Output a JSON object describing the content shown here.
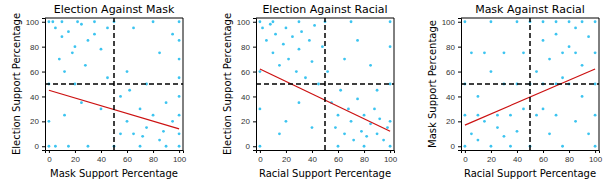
{
  "chart_data": [
    {
      "type": "scatter",
      "title": "Election Against Mask",
      "x_label": "Mask Support Percentage",
      "y_label": "Election Support Percentage",
      "xlim": [
        -3,
        103
      ],
      "ylim": [
        -3,
        103
      ],
      "xticks": [
        0,
        20,
        40,
        60,
        80,
        100
      ],
      "yticks": [
        0,
        20,
        40,
        60,
        80,
        100
      ],
      "grid": false,
      "series": [
        {
          "type": "scatter",
          "marker": "circle",
          "color": "#3cc4f0",
          "x": [
            5,
            10,
            15,
            20,
            8,
            25,
            30,
            12,
            18,
            35,
            40,
            22,
            45,
            3,
            28,
            0,
            0,
            0,
            0,
            5,
            15,
            30,
            50,
            70,
            90,
            100,
            100,
            100,
            100,
            100,
            100,
            100,
            100,
            60,
            65,
            70,
            75,
            80,
            85,
            90,
            55,
            60,
            75,
            85,
            95,
            65,
            80,
            50,
            35,
            10,
            20,
            40,
            55,
            45,
            95,
            88,
            72,
            62,
            25,
            12
          ],
          "values": [
            95,
            88,
            92,
            80,
            70,
            98,
            85,
            60,
            75,
            90,
            78,
            100,
            95,
            100,
            65,
            100,
            50,
            20,
            0,
            0,
            0,
            0,
            0,
            0,
            0,
            0,
            10,
            25,
            40,
            55,
            70,
            85,
            100,
            20,
            10,
            30,
            15,
            25,
            5,
            35,
            40,
            60,
            50,
            75,
            90,
            95,
            100,
            100,
            100,
            100,
            50,
            30,
            10,
            55,
            20,
            12,
            8,
            45,
            35,
            25
          ]
        },
        {
          "type": "line",
          "line_style": "solid",
          "color": "#cc1111",
          "x": [
            0,
            100
          ],
          "values": [
            45,
            14
          ]
        },
        {
          "type": "line",
          "line_style": "dashed",
          "color": "#000000",
          "x": [
            50,
            50
          ],
          "values": [
            -3,
            103
          ]
        },
        {
          "type": "line",
          "line_style": "dashed",
          "color": "#000000",
          "x": [
            -3,
            103
          ],
          "values": [
            50,
            50
          ]
        }
      ]
    },
    {
      "type": "scatter",
      "title": "Election Against Racial",
      "x_label": "Racial Support Percentage",
      "y_label": "Election Support Percentage",
      "xlim": [
        -3,
        103
      ],
      "ylim": [
        -3,
        103
      ],
      "xticks": [
        0,
        20,
        40,
        60,
        80,
        100
      ],
      "yticks": [
        0,
        20,
        40,
        60,
        80,
        100
      ],
      "grid": false,
      "series": [
        {
          "type": "scatter",
          "marker": "circle",
          "color": "#3cc4f0",
          "x": [
            2,
            5,
            8,
            10,
            12,
            15,
            18,
            20,
            22,
            25,
            28,
            30,
            32,
            35,
            38,
            40,
            42,
            45,
            48,
            0,
            0,
            0,
            0,
            10,
            30,
            50,
            70,
            100,
            100,
            100,
            100,
            100,
            55,
            58,
            60,
            62,
            65,
            68,
            70,
            72,
            75,
            78,
            80,
            82,
            85,
            88,
            90,
            92,
            95,
            98,
            60,
            80,
            52,
            65,
            75,
            85,
            20,
            30,
            15,
            40,
            90
          ],
          "values": [
            95,
            85,
            98,
            75,
            90,
            65,
            82,
            95,
            70,
            88,
            60,
            78,
            92,
            55,
            85,
            68,
            97,
            50,
            80,
            100,
            60,
            30,
            0,
            100,
            100,
            100,
            100,
            100,
            80,
            50,
            20,
            0,
            35,
            15,
            25,
            45,
            10,
            30,
            20,
            5,
            38,
            12,
            25,
            8,
            18,
            30,
            10,
            22,
            5,
            15,
            0,
            0,
            60,
            70,
            85,
            65,
            20,
            35,
            10,
            15,
            45
          ]
        },
        {
          "type": "line",
          "line_style": "solid",
          "color": "#cc1111",
          "x": [
            0,
            100
          ],
          "values": [
            62,
            12
          ]
        },
        {
          "type": "line",
          "line_style": "dashed",
          "color": "#000000",
          "x": [
            50,
            50
          ],
          "values": [
            -3,
            103
          ]
        },
        {
          "type": "line",
          "line_style": "dashed",
          "color": "#000000",
          "x": [
            -3,
            103
          ],
          "values": [
            50,
            50
          ]
        }
      ]
    },
    {
      "type": "scatter",
      "title": "Mask Against Racial",
      "x_label": "Racial Support Percentage",
      "y_label": "Mask Support Percentage",
      "xlim": [
        -3,
        103
      ],
      "ylim": [
        -3,
        103
      ],
      "xticks": [
        0,
        20,
        40,
        60,
        80,
        100
      ],
      "yticks": [
        0,
        20,
        40,
        60,
        80,
        100
      ],
      "grid": false,
      "series": [
        {
          "type": "scatter",
          "marker": "circle",
          "color": "#3cc4f0",
          "x": [
            0,
            0,
            0,
            0,
            5,
            10,
            15,
            20,
            25,
            30,
            35,
            40,
            45,
            10,
            20,
            30,
            40,
            20,
            50,
            60,
            70,
            80,
            90,
            100,
            55,
            60,
            65,
            70,
            75,
            80,
            85,
            90,
            95,
            100,
            100,
            100,
            100,
            60,
            70,
            80,
            85,
            90,
            95,
            50,
            40,
            30,
            60,
            70,
            15,
            25,
            45,
            55,
            65,
            75,
            85,
            10,
            5,
            50,
            75,
            35
          ],
          "values": [
            0,
            25,
            50,
            100,
            10,
            5,
            20,
            0,
            15,
            8,
            25,
            12,
            30,
            40,
            60,
            75,
            100,
            100,
            100,
            100,
            100,
            100,
            100,
            100,
            60,
            85,
            70,
            90,
            55,
            80,
            95,
            65,
            88,
            75,
            50,
            25,
            0,
            30,
            25,
            50,
            20,
            40,
            10,
            50,
            50,
            50,
            50,
            50,
            75,
            25,
            75,
            25,
            10,
            75,
            75,
            25,
            75,
            0,
            0,
            0
          ]
        },
        {
          "type": "line",
          "line_style": "solid",
          "color": "#cc1111",
          "x": [
            0,
            100
          ],
          "values": [
            17,
            62
          ]
        },
        {
          "type": "line",
          "line_style": "dashed",
          "color": "#000000",
          "x": [
            50,
            50
          ],
          "values": [
            -3,
            103
          ]
        },
        {
          "type": "line",
          "line_style": "dashed",
          "color": "#000000",
          "x": [
            -3,
            103
          ],
          "values": [
            50,
            50
          ]
        }
      ]
    }
  ]
}
